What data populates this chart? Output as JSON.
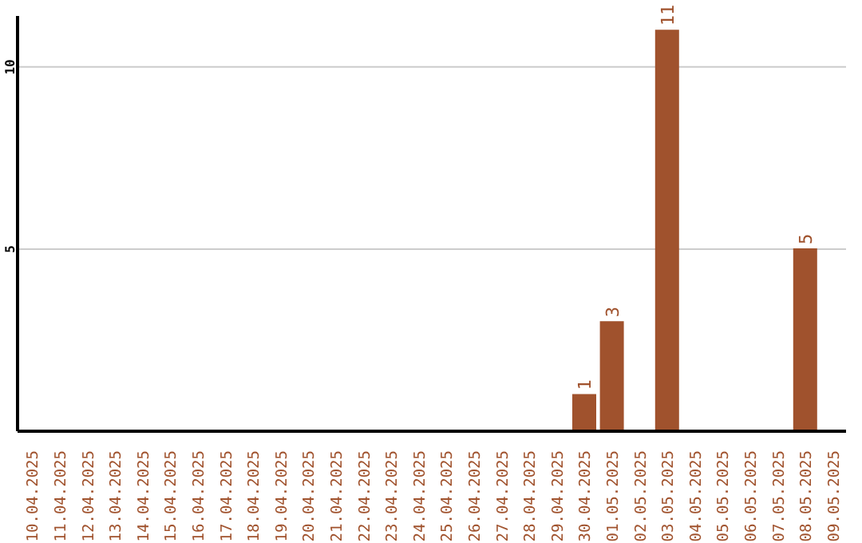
{
  "chart_data": {
    "type": "bar",
    "categories": [
      "10.04.2025",
      "11.04.2025",
      "12.04.2025",
      "13.04.2025",
      "14.04.2025",
      "15.04.2025",
      "16.04.2025",
      "17.04.2025",
      "18.04.2025",
      "19.04.2025",
      "20.04.2025",
      "21.04.2025",
      "22.04.2025",
      "23.04.2025",
      "24.04.2025",
      "25.04.2025",
      "26.04.2025",
      "27.04.2025",
      "28.04.2025",
      "29.04.2025",
      "30.04.2025",
      "01.05.2025",
      "02.05.2025",
      "03.05.2025",
      "04.05.2025",
      "05.05.2025",
      "06.05.2025",
      "07.05.2025",
      "08.05.2025",
      "09.05.2025"
    ],
    "values": [
      0,
      0,
      0,
      0,
      0,
      0,
      0,
      0,
      0,
      0,
      0,
      0,
      0,
      0,
      0,
      0,
      0,
      0,
      0,
      0,
      1,
      3,
      0,
      11,
      0,
      0,
      0,
      0,
      5,
      0
    ],
    "value_labels": [
      null,
      null,
      null,
      null,
      null,
      null,
      null,
      null,
      null,
      null,
      null,
      null,
      null,
      null,
      null,
      null,
      null,
      null,
      null,
      null,
      "1",
      "3",
      null,
      "11",
      null,
      null,
      null,
      null,
      "5",
      null
    ],
    "color": "#a0522d",
    "ylim": [
      0,
      11.4
    ],
    "yticks": [
      5,
      10
    ],
    "grid": "y"
  }
}
